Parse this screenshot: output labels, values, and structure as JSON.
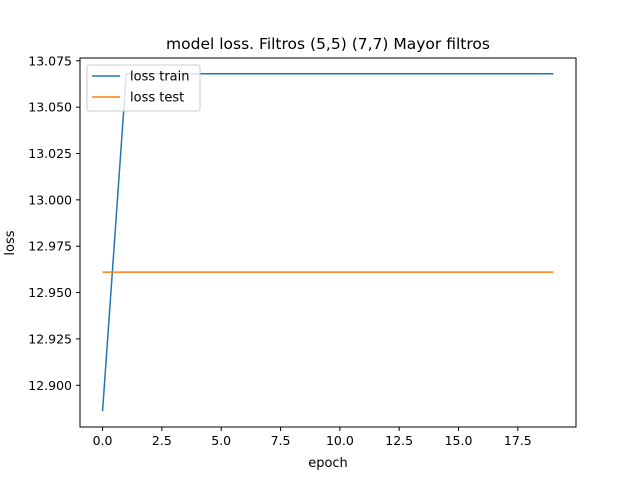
{
  "chart_data": {
    "type": "line",
    "title": "model loss. Filtros (5,5) (7,7) Mayor filtros",
    "xlabel": "epoch",
    "ylabel": "loss",
    "xlim": [
      -0.95,
      19.95
    ],
    "ylim": [
      12.8775,
      13.0765
    ],
    "xticks": [
      0.0,
      2.5,
      5.0,
      7.5,
      10.0,
      12.5,
      15.0,
      17.5
    ],
    "xtick_labels": [
      "0.0",
      "2.5",
      "5.0",
      "7.5",
      "10.0",
      "12.5",
      "15.0",
      "17.5"
    ],
    "yticks": [
      12.9,
      12.925,
      12.95,
      12.975,
      13.0,
      13.025,
      13.05,
      13.075
    ],
    "ytick_labels": [
      "12.900",
      "12.925",
      "12.950",
      "12.975",
      "13.000",
      "13.025",
      "13.050",
      "13.075"
    ],
    "grid": false,
    "legend_position": "top-left",
    "x": [
      0,
      1,
      2,
      3,
      4,
      5,
      6,
      7,
      8,
      9,
      10,
      11,
      12,
      13,
      14,
      15,
      16,
      17,
      18,
      19
    ],
    "series": [
      {
        "name": "loss train",
        "color": "#1f77b4",
        "values": [
          12.886,
          13.068,
          13.068,
          13.068,
          13.068,
          13.068,
          13.068,
          13.068,
          13.068,
          13.068,
          13.068,
          13.068,
          13.068,
          13.068,
          13.068,
          13.068,
          13.068,
          13.068,
          13.068,
          13.068
        ]
      },
      {
        "name": "loss test",
        "color": "#ff7f0e",
        "values": [
          12.961,
          12.961,
          12.961,
          12.961,
          12.961,
          12.961,
          12.961,
          12.961,
          12.961,
          12.961,
          12.961,
          12.961,
          12.961,
          12.961,
          12.961,
          12.961,
          12.961,
          12.961,
          12.961,
          12.961
        ]
      }
    ]
  }
}
